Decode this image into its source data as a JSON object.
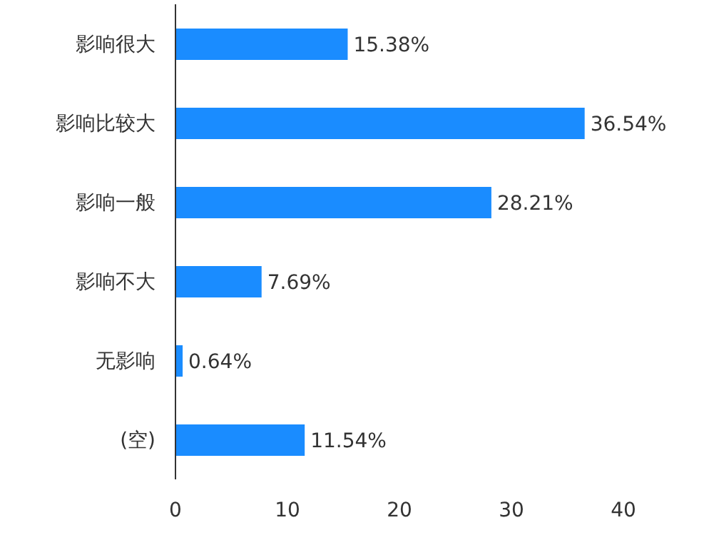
{
  "chart_data": {
    "type": "bar",
    "orientation": "horizontal",
    "categories": [
      "影响很大",
      "影响比较大",
      "影响一般",
      "影响不大",
      "无影响",
      "(空)"
    ],
    "values": [
      15.38,
      36.54,
      28.21,
      7.69,
      0.64,
      11.54
    ],
    "value_labels": [
      "15.38%",
      "36.54%",
      "28.21%",
      "7.69%",
      "0.64%",
      "11.54%"
    ],
    "color": "#1a8cff",
    "xlim": [
      0,
      40
    ],
    "xticks": [
      0,
      10,
      20,
      30,
      40
    ],
    "grid": false,
    "legend": false
  }
}
